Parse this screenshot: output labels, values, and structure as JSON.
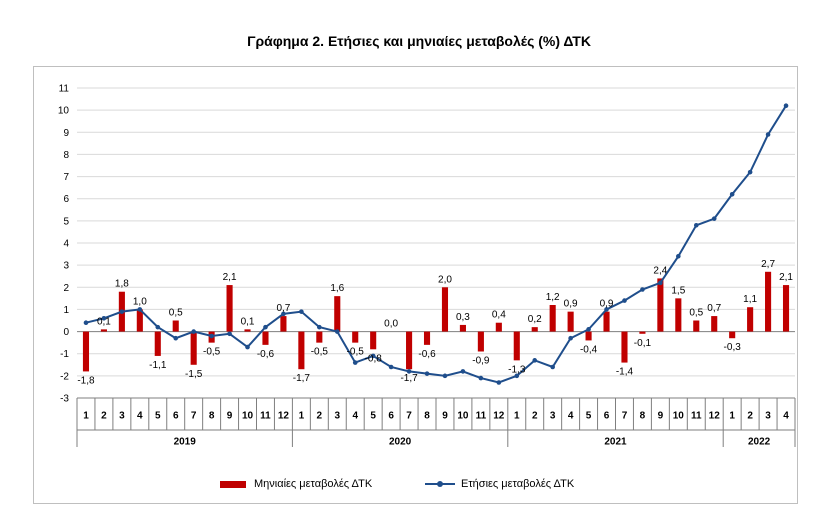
{
  "header": {
    "top_text": "",
    "title": "Γράφημα 2. Ετήσιες και μηνιαίες μεταβολές (%) ΔΤΚ"
  },
  "chart_data": {
    "type": "bar+line",
    "title": "Γράφημα 2. Ετήσιες και μηνιαίες μεταβολές (%) ΔΤΚ",
    "ylim": [
      -3,
      11
    ],
    "yticks": [
      -3,
      -2,
      -1,
      0,
      1,
      2,
      3,
      4,
      5,
      6,
      7,
      8,
      9,
      10,
      11
    ],
    "grid": true,
    "legend_position": "bottom",
    "months": [
      "1",
      "2",
      "3",
      "4",
      "5",
      "6",
      "7",
      "8",
      "9",
      "10",
      "11",
      "12",
      "1",
      "2",
      "3",
      "4",
      "5",
      "6",
      "7",
      "8",
      "9",
      "10",
      "11",
      "12",
      "1",
      "2",
      "3",
      "4",
      "5",
      "6",
      "7",
      "8",
      "9",
      "10",
      "11",
      "12",
      "1",
      "2",
      "3",
      "4"
    ],
    "years": [
      {
        "label": "2019",
        "count": 12
      },
      {
        "label": "2020",
        "count": 12
      },
      {
        "label": "2021",
        "count": 12
      },
      {
        "label": "2022",
        "count": 4
      }
    ],
    "series": [
      {
        "name": "Μηνιαίες μεταβολές ΔΤΚ",
        "type": "bar",
        "color": "#c00000",
        "values": [
          -1.8,
          0.1,
          1.8,
          1.0,
          -1.1,
          0.5,
          -1.5,
          -0.5,
          2.1,
          0.1,
          -0.6,
          0.7,
          -1.7,
          -0.5,
          1.6,
          -0.5,
          -0.8,
          0.0,
          -1.7,
          -0.6,
          2.0,
          0.3,
          -0.9,
          0.4,
          -1.3,
          0.2,
          1.2,
          0.9,
          -0.4,
          0.9,
          -1.4,
          -0.1,
          2.4,
          1.5,
          0.5,
          0.7,
          -0.3,
          1.1,
          2.7,
          2.1
        ],
        "data_labels": [
          "-1,8",
          "0,1",
          "1,8",
          "1,0",
          "-1,1",
          "0,5",
          "-1,5",
          "-0,5",
          "2,1",
          "0,1",
          "-0,6",
          "0,7",
          "-1,7",
          "-0,5",
          "1,6",
          "-0,5",
          "-0,8",
          "0,0",
          "-1,7",
          "-0,6",
          "2,0",
          "0,3",
          "-0,9",
          "0,4",
          "-1,3",
          "0,2",
          "1,2",
          "0,9",
          "-0,4",
          "0,9",
          "-1,4",
          "-0,1",
          "2,4",
          "1,5",
          "0,5",
          "0,7",
          "-0,3",
          "1,1",
          "2,7",
          "2,1"
        ]
      },
      {
        "name": "Ετήσιες μεταβολές ΔΤΚ",
        "type": "line",
        "color": "#1f4e8c",
        "values": [
          0.4,
          0.6,
          0.9,
          1.0,
          0.2,
          -0.3,
          0.0,
          -0.2,
          -0.1,
          -0.7,
          0.2,
          0.8,
          0.9,
          0.2,
          0.0,
          -1.4,
          -1.1,
          -1.6,
          -1.8,
          -1.9,
          -2.0,
          -1.8,
          -2.1,
          -2.3,
          -2.0,
          -1.3,
          -1.6,
          -0.3,
          0.1,
          1.0,
          1.4,
          1.9,
          2.2,
          3.4,
          4.8,
          5.1,
          6.2,
          7.2,
          8.9,
          10.2
        ]
      }
    ]
  },
  "legend": {
    "bar_label": "Μηνιαίες μεταβολές ΔΤΚ",
    "line_label": "Ετήσιες μεταβολές ΔΤΚ"
  }
}
